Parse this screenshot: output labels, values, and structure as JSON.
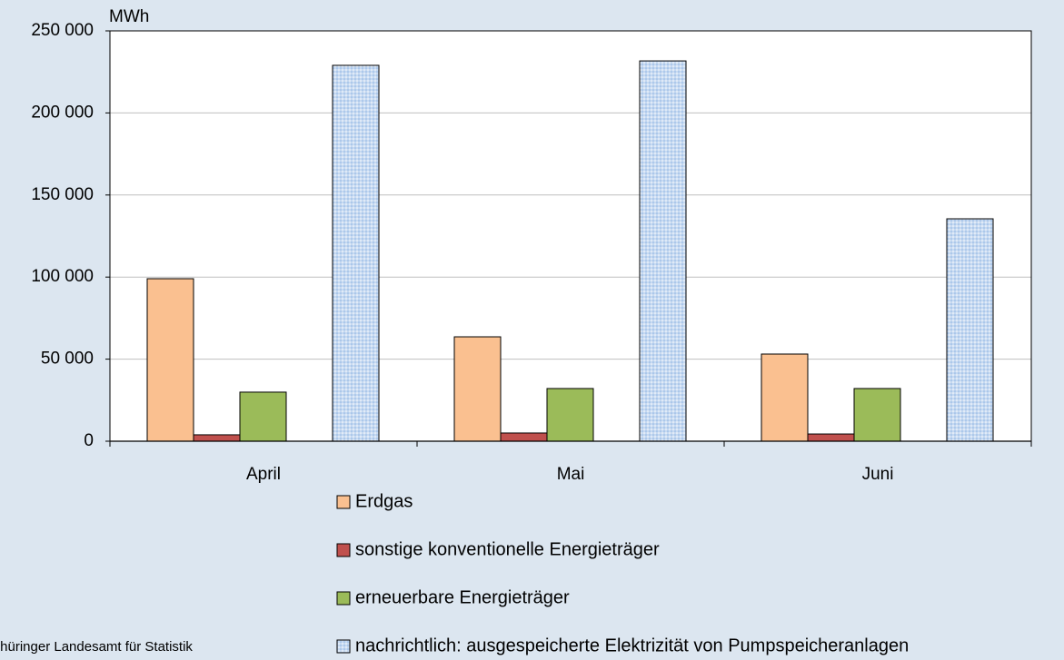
{
  "chart_data": {
    "type": "bar",
    "unit": "MWh",
    "categories": [
      "April",
      "Mai",
      "Juni"
    ],
    "series": [
      {
        "name": "Erdgas",
        "color": "#fac090",
        "values": [
          99000,
          63600,
          53100
        ]
      },
      {
        "name": "sonstige konventionelle Energieträger",
        "color": "#c0504d",
        "values": [
          3900,
          5000,
          4400
        ]
      },
      {
        "name": "erneuerbare Energieträger",
        "color": "#9bbb59",
        "values": [
          29900,
          32100,
          32100
        ]
      },
      {
        "name": "nachrichtlich: ausgespeicherte Elektrizität von Pumpspeicheranlagen",
        "color": "#c6d9f1",
        "pattern": "dotted",
        "values": [
          229000,
          231700,
          135500
        ]
      }
    ],
    "ylim": [
      0,
      250000
    ],
    "yticks": [
      0,
      {
        "value": 50000,
        "label": "50 000"
      },
      {
        "value": 100000,
        "label": "100 000"
      },
      {
        "value": 150000,
        "label": "150 000"
      },
      {
        "value": 200000,
        "label": "200 000"
      },
      {
        "value": 250000,
        "label": "250 000"
      }
    ],
    "grid": true,
    "source": "Thüringer Landesamt für Statistik"
  }
}
